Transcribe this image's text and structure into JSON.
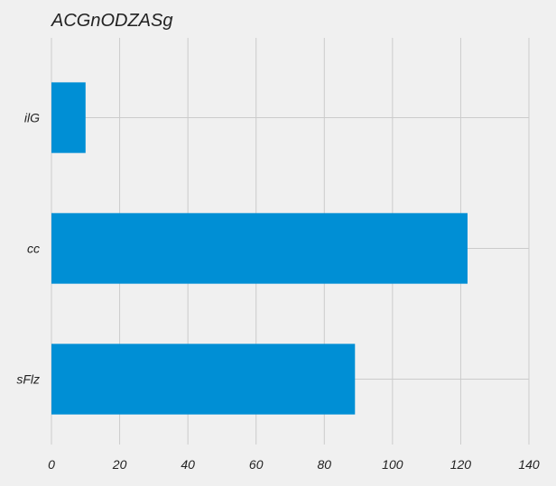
{
  "chart_data": {
    "type": "bar",
    "orientation": "horizontal",
    "title": "ACGnODZASg",
    "xlabel": "",
    "ylabel": "",
    "categories": [
      "sFlz",
      "cc",
      "ilG"
    ],
    "values": [
      89,
      122,
      10
    ],
    "xlim": [
      0,
      140
    ],
    "x_ticks": [
      0,
      20,
      40,
      60,
      80,
      100,
      120,
      140
    ],
    "grid": true,
    "legend": "none",
    "colors": {
      "bar": "#008fd5",
      "background": "#f0f0f0",
      "grid": "#cbcbcb",
      "text": "#222222"
    }
  }
}
